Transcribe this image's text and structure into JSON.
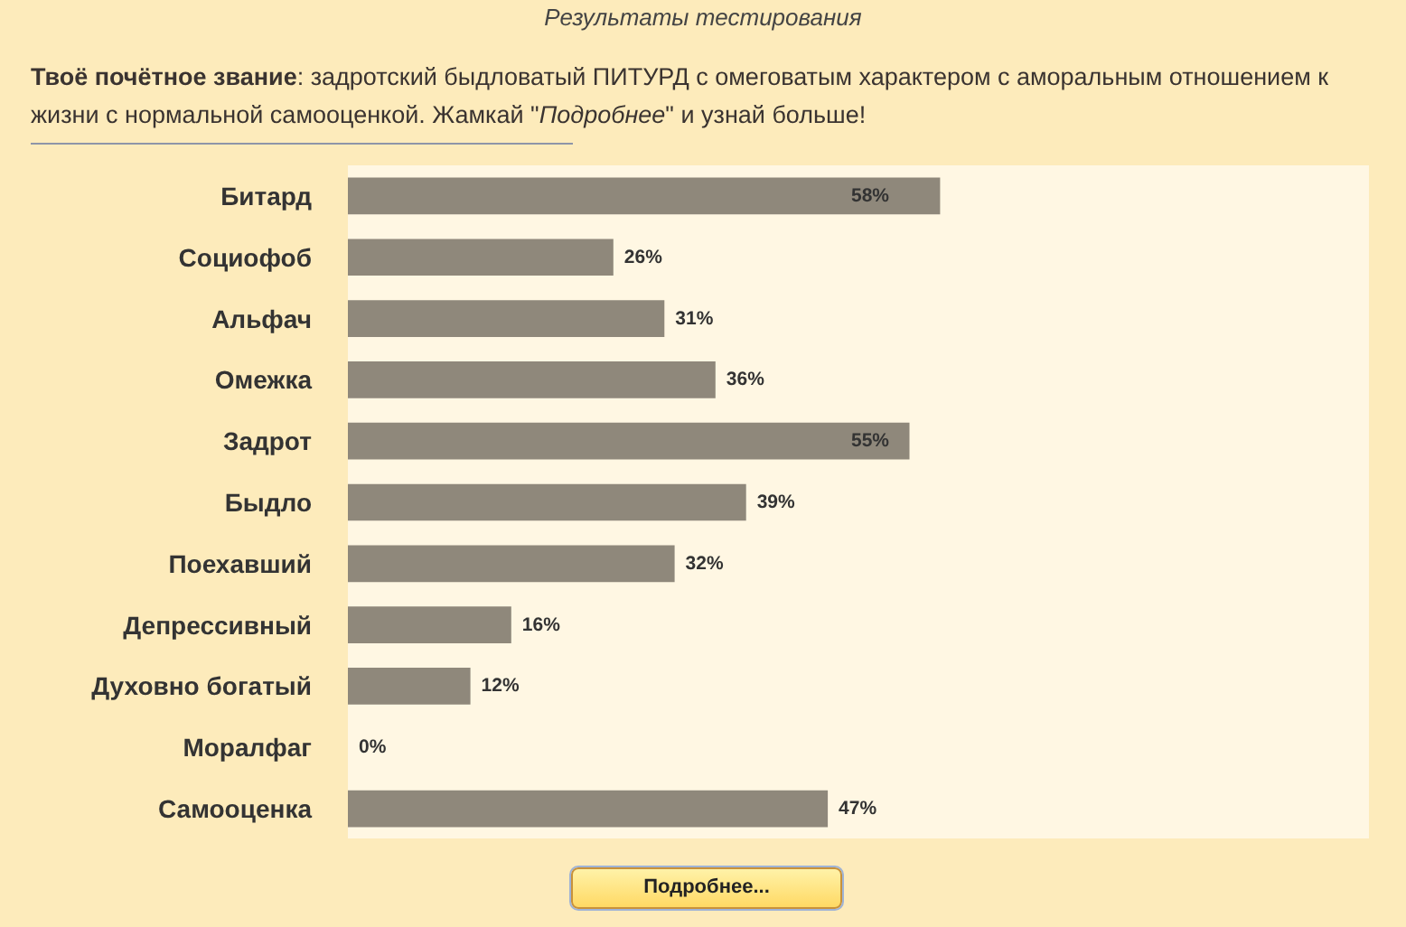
{
  "chart_data": {
    "type": "bar",
    "orientation": "horizontal",
    "title": "Результаты тестирования",
    "subtitle": "Твоё почётное звание: задротский быдловатый ПИТУРД с омеговатым характером с аморальным отношением к жизни с нормальной самооценкой. Жамкай \"Подробнее\" и узнай больше!",
    "categories": [
      "Битард",
      "Социофоб",
      "Альфач",
      "Омежка",
      "Задрот",
      "Быдло",
      "Поехавший",
      "Депрессивный",
      "Духовно богатый",
      "Моралфаг",
      "Самооценка"
    ],
    "values": [
      58,
      26,
      31,
      36,
      55,
      39,
      32,
      16,
      12,
      0,
      47
    ],
    "value_labels": [
      "58%",
      "26%",
      "31%",
      "36%",
      "55%",
      "39%",
      "32%",
      "16%",
      "12%",
      "0%",
      "47%"
    ],
    "color": "#8f887b",
    "xlim": [
      0,
      100
    ],
    "tick_labels": "y",
    "annotations": [
      "Подробнее..."
    ]
  }
}
